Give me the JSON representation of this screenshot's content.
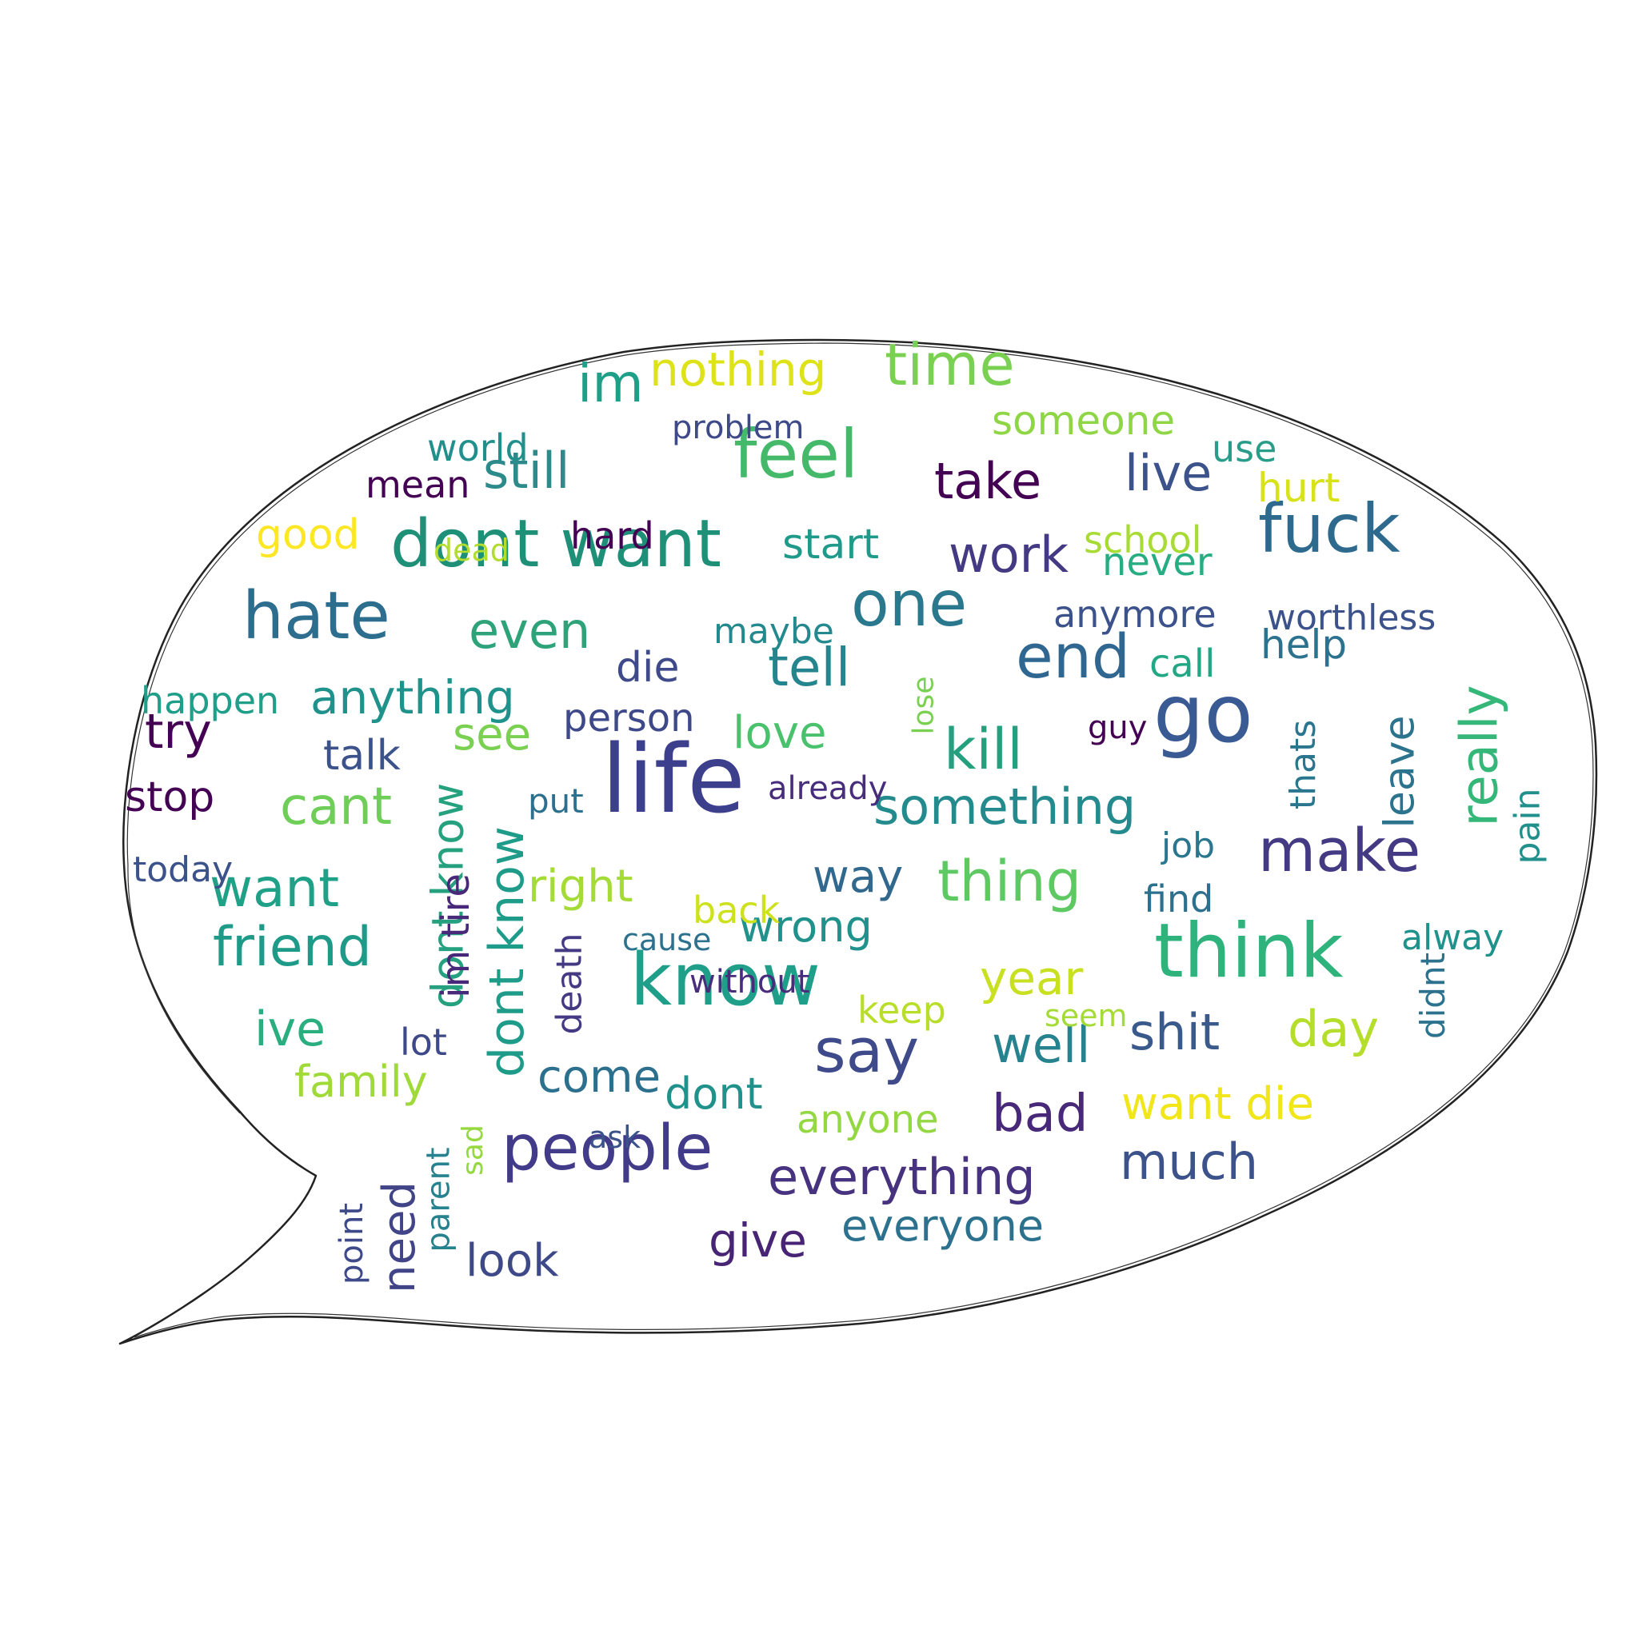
{
  "colors": {
    "background": "#ffffff",
    "bubble_outline": "#222222"
  },
  "words": [
    {
      "key": "life",
      "text": "life",
      "color": "#3b3f8c"
    },
    {
      "key": "go",
      "text": "go",
      "color": "#3a5a93"
    },
    {
      "key": "know",
      "text": "know",
      "color": "#1f9e89"
    },
    {
      "key": "think",
      "text": "think",
      "color": "#2eb37c"
    },
    {
      "key": "people",
      "text": "people",
      "color": "#423b8a"
    },
    {
      "key": "dont_want",
      "text": "dont want",
      "color": "#1f9078"
    },
    {
      "key": "fuck",
      "text": "fuck",
      "color": "#2e6a8e"
    },
    {
      "key": "feel",
      "text": "feel",
      "color": "#45b96a"
    },
    {
      "key": "hate",
      "text": "hate",
      "color": "#2d6d8e"
    },
    {
      "key": "one",
      "text": "one",
      "color": "#2a788e"
    },
    {
      "key": "end",
      "text": "end",
      "color": "#2f6791"
    },
    {
      "key": "say",
      "text": "say",
      "color": "#3e4a89"
    },
    {
      "key": "make",
      "text": "make",
      "color": "#433a83"
    },
    {
      "key": "time",
      "text": "time",
      "color": "#7ad151"
    },
    {
      "key": "dont_know_v",
      "text": "dont know",
      "color": "#1e9c89"
    },
    {
      "key": "kill",
      "text": "kill",
      "color": "#25a07e"
    },
    {
      "key": "friend",
      "text": "friend",
      "color": "#1e9b88"
    },
    {
      "key": "thing",
      "text": "thing",
      "color": "#5ec962"
    },
    {
      "key": "really",
      "text": "really",
      "color": "#35b779"
    },
    {
      "key": "tell",
      "text": "tell",
      "color": "#25858e"
    },
    {
      "key": "want",
      "text": "want",
      "color": "#1fa187"
    },
    {
      "key": "im",
      "text": "im",
      "color": "#1e9f88"
    },
    {
      "key": "still",
      "text": "still",
      "color": "#2d8a8b"
    },
    {
      "key": "nothing",
      "text": "nothing",
      "color": "#dde318"
    },
    {
      "key": "work",
      "text": "work",
      "color": "#443a83"
    },
    {
      "key": "take",
      "text": "take",
      "color": "#440154"
    },
    {
      "key": "live",
      "text": "live",
      "color": "#3b528b"
    },
    {
      "key": "something",
      "text": "something",
      "color": "#238a8d"
    },
    {
      "key": "everything",
      "text": "everything",
      "color": "#46327e"
    },
    {
      "key": "even",
      "text": "even",
      "color": "#2ea37a"
    },
    {
      "key": "anything",
      "text": "anything",
      "color": "#20928c"
    },
    {
      "key": "cant",
      "text": "cant",
      "color": "#6ece58"
    },
    {
      "key": "much",
      "text": "much",
      "color": "#3b528b"
    },
    {
      "key": "bad",
      "text": "bad",
      "color": "#482878"
    },
    {
      "key": "shit",
      "text": "shit",
      "color": "#3a5a8c"
    },
    {
      "key": "well",
      "text": "well",
      "color": "#25828e"
    },
    {
      "key": "day",
      "text": "day",
      "color": "#b5de2b"
    },
    {
      "key": "year",
      "text": "year",
      "color": "#c8e020"
    },
    {
      "key": "want_die",
      "text": "want die",
      "color": "#f0e61a"
    },
    {
      "key": "need",
      "text": "need",
      "color": "#414487"
    },
    {
      "key": "dont_know_v2",
      "text": "dont know",
      "color": "#25a180"
    },
    {
      "key": "right",
      "text": "right",
      "color": "#a5db36"
    },
    {
      "key": "way",
      "text": "way",
      "color": "#31688e"
    },
    {
      "key": "come",
      "text": "come",
      "color": "#2d708e"
    },
    {
      "key": "dont",
      "text": "dont",
      "color": "#21918c"
    },
    {
      "key": "leave",
      "text": "leave",
      "color": "#2c738e"
    },
    {
      "key": "see",
      "text": "see",
      "color": "#7ad151"
    },
    {
      "key": "try",
      "text": "try",
      "color": "#440154"
    },
    {
      "key": "ive",
      "text": "ive",
      "color": "#29af7f"
    },
    {
      "key": "everyone",
      "text": "everyone",
      "color": "#2c728e"
    },
    {
      "key": "give",
      "text": "give",
      "color": "#482475"
    },
    {
      "key": "look",
      "text": "look",
      "color": "#3e4989"
    },
    {
      "key": "family",
      "text": "family",
      "color": "#a0da39"
    },
    {
      "key": "wrong",
      "text": "wrong",
      "color": "#21918c"
    },
    {
      "key": "talk",
      "text": "talk",
      "color": "#3b528b"
    },
    {
      "key": "stop",
      "text": "stop",
      "color": "#440154"
    },
    {
      "key": "love",
      "text": "love",
      "color": "#4ac16d"
    },
    {
      "key": "start",
      "text": "start",
      "color": "#1f9a8a"
    },
    {
      "key": "someone",
      "text": "someone",
      "color": "#8ed645"
    },
    {
      "key": "help",
      "text": "help",
      "color": "#2c728e"
    },
    {
      "key": "anyone",
      "text": "anyone",
      "color": "#93d741"
    },
    {
      "key": "thats",
      "text": "thats",
      "color": "#2a768e"
    },
    {
      "key": "person",
      "text": "person",
      "color": "#3e4989"
    },
    {
      "key": "good",
      "text": "good",
      "color": "#fde725"
    },
    {
      "key": "never",
      "text": "never",
      "color": "#27ad81"
    },
    {
      "key": "hurt",
      "text": "hurt",
      "color": "#d8e219"
    },
    {
      "key": "die",
      "text": "die",
      "color": "#3e4a89"
    },
    {
      "key": "anymore",
      "text": "anymore",
      "color": "#3b528b"
    },
    {
      "key": "worthless",
      "text": "worthless",
      "color": "#3b528b"
    },
    {
      "key": "im_tire",
      "text": "im tire",
      "color": "#482878"
    },
    {
      "key": "call",
      "text": "call",
      "color": "#22a785"
    },
    {
      "key": "hard",
      "text": "hard",
      "color": "#440154"
    },
    {
      "key": "find",
      "text": "find",
      "color": "#2d708e"
    },
    {
      "key": "world",
      "text": "world",
      "color": "#21908d"
    },
    {
      "key": "mean",
      "text": "mean",
      "color": "#440154"
    },
    {
      "key": "school",
      "text": "school",
      "color": "#a8db34"
    },
    {
      "key": "pain",
      "text": "pain",
      "color": "#21908d"
    },
    {
      "key": "alway",
      "text": "alway",
      "color": "#20928c"
    },
    {
      "key": "use",
      "text": "use",
      "color": "#2a9d8a"
    },
    {
      "key": "happen",
      "text": "happen",
      "color": "#1f9e89"
    },
    {
      "key": "maybe",
      "text": "maybe",
      "color": "#23898e"
    },
    {
      "key": "back",
      "text": "back",
      "color": "#cde11d"
    },
    {
      "key": "death",
      "text": "death",
      "color": "#443983"
    },
    {
      "key": "keep",
      "text": "keep",
      "color": "#b8de29"
    },
    {
      "key": "job",
      "text": "job",
      "color": "#2a768e"
    },
    {
      "key": "today",
      "text": "today",
      "color": "#3b528b"
    },
    {
      "key": "didnt",
      "text": "didnt",
      "color": "#2c728e"
    },
    {
      "key": "lot",
      "text": "lot",
      "color": "#3e4989"
    },
    {
      "key": "point",
      "text": "point",
      "color": "#3e4989"
    },
    {
      "key": "parent",
      "text": "parent",
      "color": "#26828e"
    },
    {
      "key": "put",
      "text": "put",
      "color": "#2d708e"
    },
    {
      "key": "already",
      "text": "already",
      "color": "#472d7b"
    },
    {
      "key": "problem",
      "text": "problem",
      "color": "#3e4989"
    },
    {
      "key": "without",
      "text": "without",
      "color": "#472d7b"
    },
    {
      "key": "lose",
      "text": "lose",
      "color": "#7ad151"
    },
    {
      "key": "dead",
      "text": "dead",
      "color": "#b2dd2d"
    },
    {
      "key": "seem",
      "text": "seem",
      "color": "#a5db36"
    },
    {
      "key": "sad",
      "text": "sad",
      "color": "#95d840"
    },
    {
      "key": "cause",
      "text": "cause",
      "color": "#2c728e"
    },
    {
      "key": "guy",
      "text": "guy",
      "color": "#440154"
    },
    {
      "key": "ask",
      "text": "ask",
      "color": "#3b528b"
    }
  ]
}
